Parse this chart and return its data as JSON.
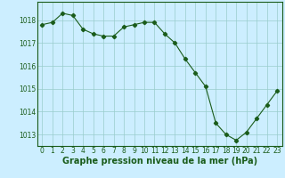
{
  "x": [
    0,
    1,
    2,
    3,
    4,
    5,
    6,
    7,
    8,
    9,
    10,
    11,
    12,
    13,
    14,
    15,
    16,
    17,
    18,
    19,
    20,
    21,
    22,
    23
  ],
  "y": [
    1017.8,
    1017.9,
    1018.3,
    1018.2,
    1017.6,
    1017.4,
    1017.3,
    1017.3,
    1017.7,
    1017.8,
    1017.9,
    1017.9,
    1017.4,
    1017.0,
    1016.3,
    1015.7,
    1015.1,
    1013.5,
    1013.0,
    1012.75,
    1013.1,
    1013.7,
    1014.3,
    1014.9
  ],
  "line_color": "#1a5c1a",
  "marker": "D",
  "marker_size": 2.2,
  "bg_color": "#cceeff",
  "grid_color": "#99cccc",
  "xlabel": "Graphe pression niveau de la mer (hPa)",
  "xlabel_color": "#1a5c1a",
  "xlabel_fontsize": 7,
  "tick_color": "#1a5c1a",
  "tick_fontsize": 5.5,
  "ylim": [
    1012.5,
    1018.8
  ],
  "yticks": [
    1013,
    1014,
    1015,
    1016,
    1017,
    1018
  ],
  "xlim": [
    -0.5,
    23.5
  ],
  "xticks": [
    0,
    1,
    2,
    3,
    4,
    5,
    6,
    7,
    8,
    9,
    10,
    11,
    12,
    13,
    14,
    15,
    16,
    17,
    18,
    19,
    20,
    21,
    22,
    23
  ]
}
